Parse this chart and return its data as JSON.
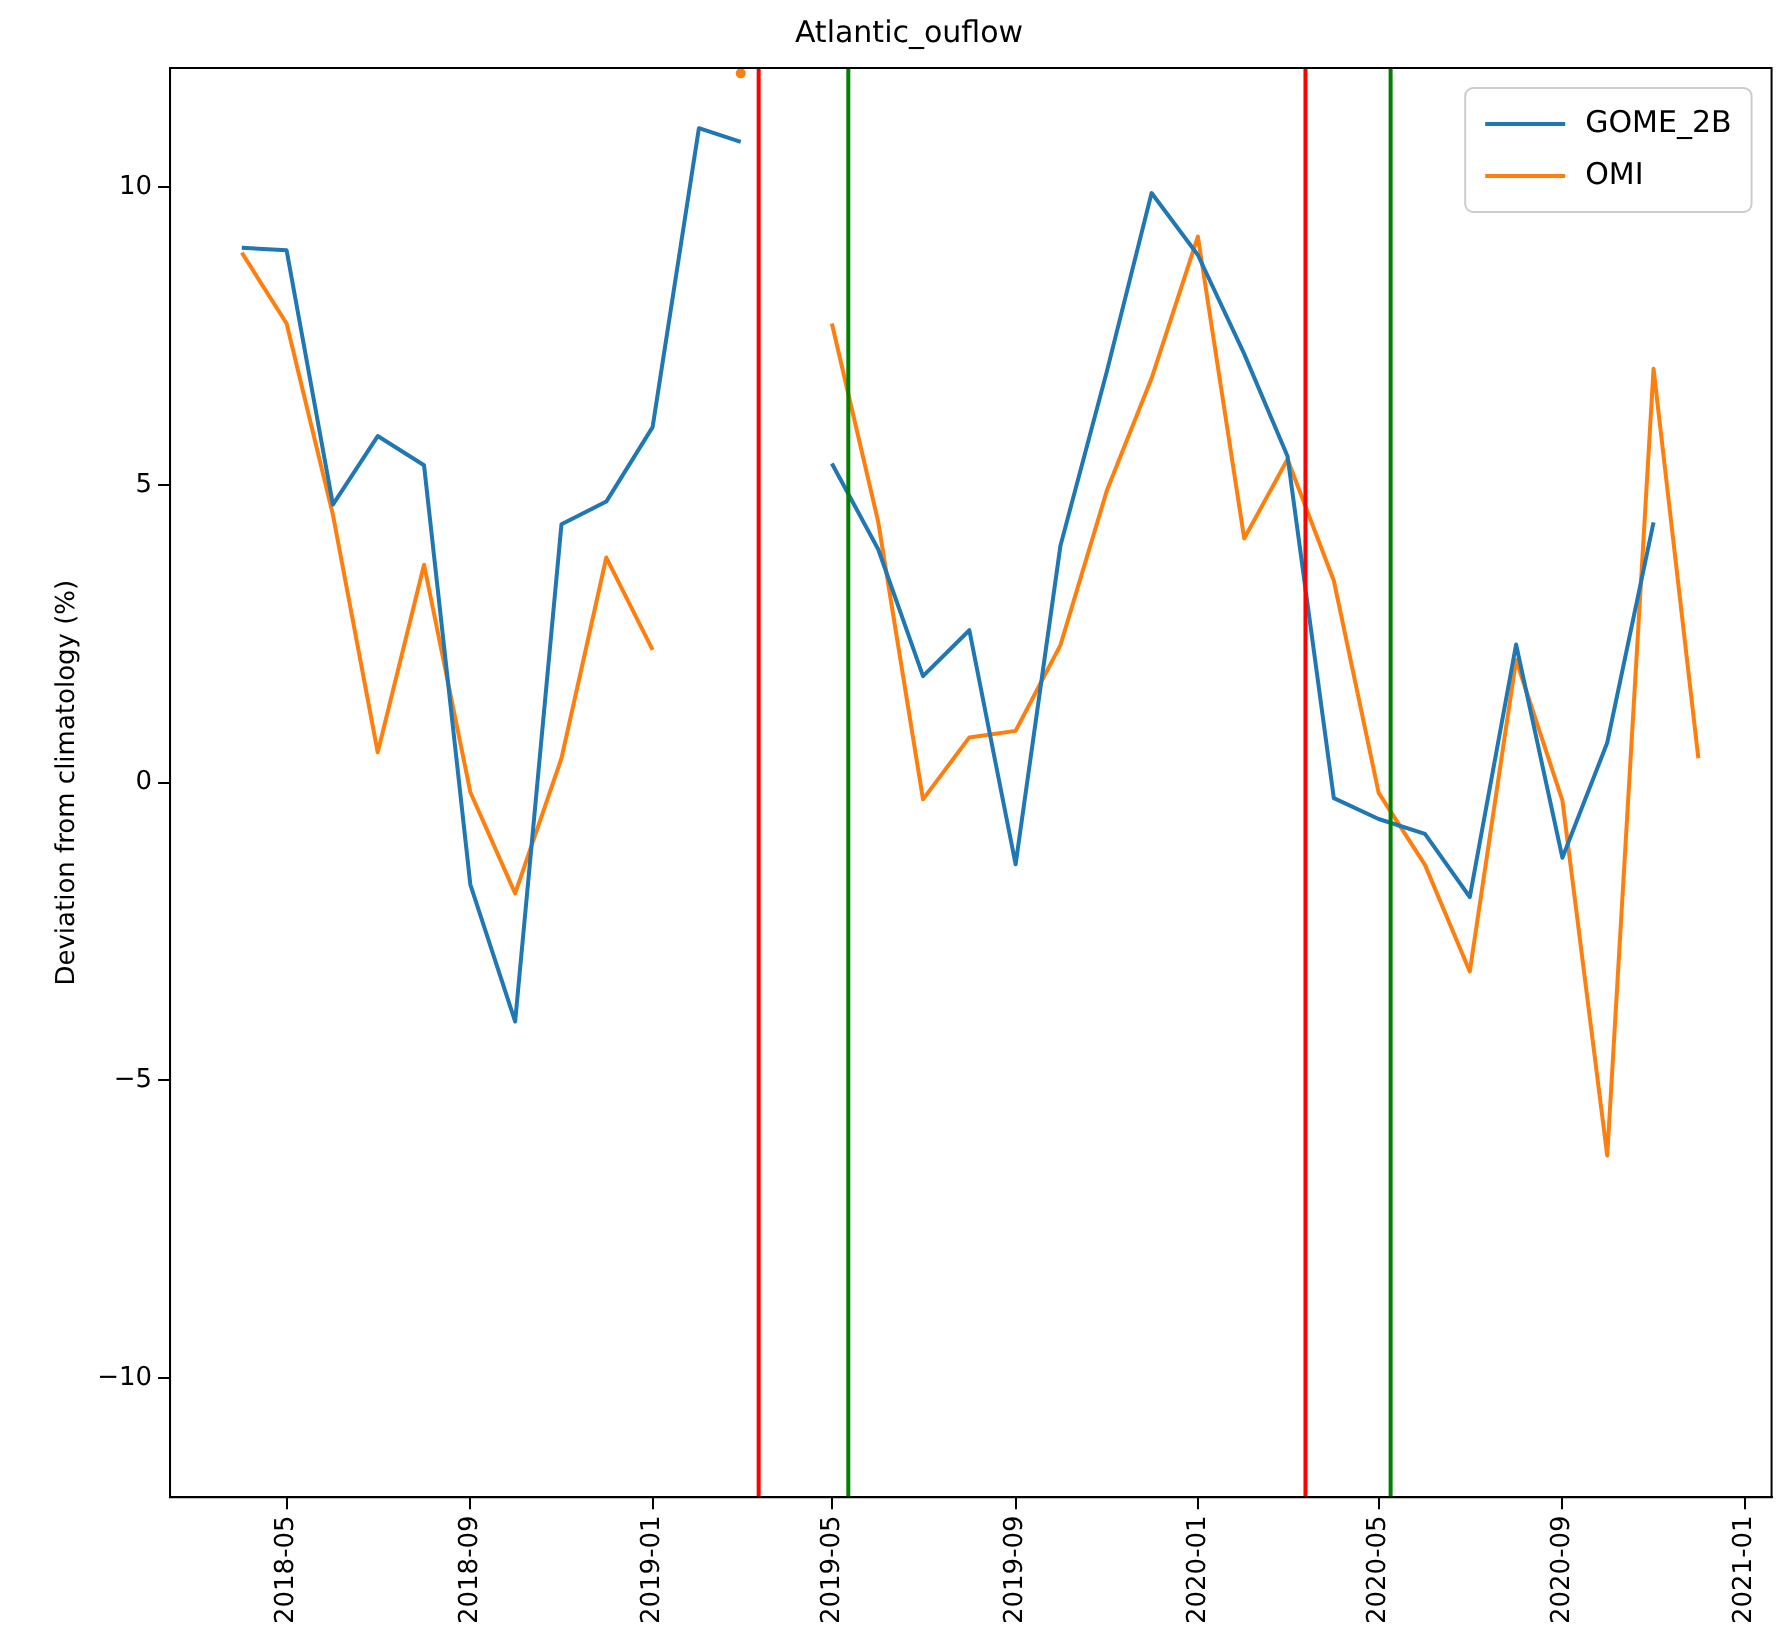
{
  "chart_data": {
    "type": "line",
    "title": "Atlantic_ouflow",
    "ylabel": "Deviation from climatology (%)",
    "x": [
      "2018-04",
      "2018-05",
      "2018-06",
      "2018-07",
      "2018-08",
      "2018-09",
      "2018-10",
      "2018-11",
      "2018-12",
      "2019-01",
      "2019-02",
      "2019-03",
      "2019-04",
      "2019-05",
      "2019-06",
      "2019-07",
      "2019-08",
      "2019-09",
      "2019-10",
      "2019-11",
      "2019-12",
      "2020-01",
      "2020-02",
      "2020-03",
      "2020-04",
      "2020-05",
      "2020-06",
      "2020-07",
      "2020-08",
      "2020-09",
      "2020-10",
      "2020-11",
      "2020-12"
    ],
    "series": [
      {
        "name": "GOME_2B",
        "color": "#1f77b4",
        "values": [
          8.98,
          8.94,
          4.67,
          5.82,
          5.33,
          -1.71,
          -4.01,
          4.34,
          4.72,
          5.97,
          10.99,
          10.76,
          null,
          5.36,
          3.92,
          1.79,
          2.56,
          -1.37,
          3.98,
          6.9,
          9.9,
          8.86,
          7.2,
          5.48,
          -0.26,
          -0.61,
          -0.86,
          -1.92,
          2.32,
          -1.26,
          0.67,
          4.37,
          null
        ]
      },
      {
        "name": "OMI",
        "color": "#ff7f0e",
        "values": [
          8.9,
          7.71,
          4.5,
          0.51,
          3.66,
          -0.16,
          -1.86,
          0.41,
          3.78,
          2.23,
          null,
          11.91,
          null,
          7.71,
          4.38,
          -0.28,
          0.76,
          0.87,
          2.31,
          4.9,
          6.79,
          9.17,
          4.1,
          5.43,
          3.39,
          -0.17,
          -1.38,
          -3.17,
          2.06,
          -0.3,
          -6.26,
          6.95,
          0.41
        ]
      }
    ],
    "xlim": [
      "2018-02-12",
      "2021-01-19"
    ],
    "xticks": [
      "2018-05",
      "2018-09",
      "2019-01",
      "2019-05",
      "2019-09",
      "2020-01",
      "2020-05",
      "2020-09",
      "2021-01"
    ],
    "ylim": [
      -12,
      12
    ],
    "yticks": [
      {
        "value": -10,
        "label": "−10"
      },
      {
        "value": -5,
        "label": "−5"
      },
      0,
      5,
      10
    ],
    "ref_lines": [
      {
        "axis": "x",
        "value": "2019-03-13",
        "color": "#ff0000"
      },
      {
        "axis": "x",
        "value": "2019-05-12",
        "color": "#008000"
      },
      {
        "axis": "x",
        "value": "2020-03-13",
        "color": "#ff0000"
      },
      {
        "axis": "x",
        "value": "2020-05-09",
        "color": "#008000"
      }
    ],
    "grid": false,
    "legend": "top right",
    "marker": "none",
    "line_style": "solid"
  }
}
